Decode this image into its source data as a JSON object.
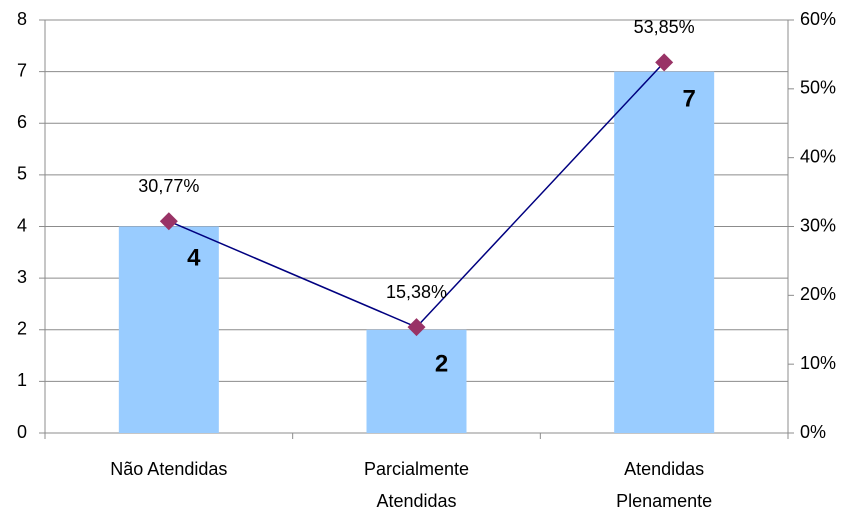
{
  "chart_data": {
    "type": "bar_line",
    "categories": [
      "Não Atendidas",
      "Parcialmente\nAtendidas",
      "Atendidas\nPlenamente"
    ],
    "series": [
      {
        "type": "bar",
        "color": "#99ccff",
        "values": [
          4,
          2,
          7
        ]
      },
      {
        "type": "line",
        "axis": "y2",
        "color": "#000080",
        "marker_color": "#993366",
        "values": [
          30.77,
          15.38,
          53.85
        ],
        "value_labels": [
          "30,77%",
          "15,38%",
          "53,85%"
        ]
      }
    ],
    "ylim": [
      0,
      8
    ],
    "yticks": [
      0,
      1,
      2,
      3,
      4,
      5,
      6,
      7,
      8
    ],
    "y2lim": [
      0,
      60
    ],
    "y2ticks": [
      {
        "value": 0,
        "label": "0%"
      },
      {
        "value": 10,
        "label": "10%"
      },
      {
        "value": 20,
        "label": "20%"
      },
      {
        "value": 30,
        "label": "30%"
      },
      {
        "value": 40,
        "label": "40%"
      },
      {
        "value": 50,
        "label": "50%"
      },
      {
        "value": 60,
        "label": "60%"
      }
    ],
    "grid": true
  }
}
